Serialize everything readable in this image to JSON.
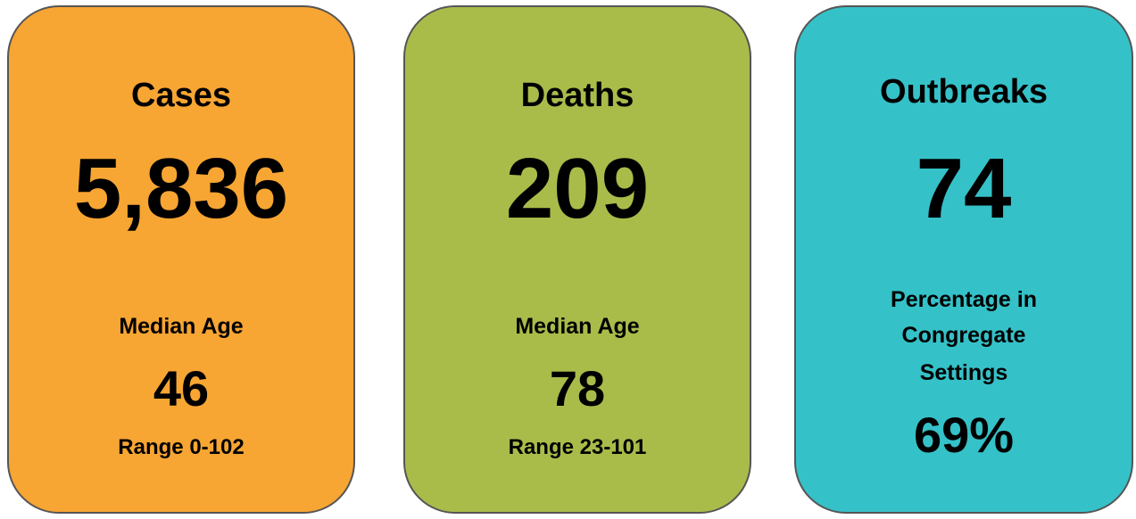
{
  "cards": [
    {
      "title": "Cases",
      "value": "5,836",
      "label_lines": [
        "Median Age"
      ],
      "sub_value": "46",
      "range": "Range 0-102"
    },
    {
      "title": "Deaths",
      "value": "209",
      "label_lines": [
        "Median Age"
      ],
      "sub_value": "78",
      "range": "Range 23-101"
    },
    {
      "title": "Outbreaks",
      "value": "74",
      "label_lines": [
        "Percentage in",
        "Congregate",
        "Settings"
      ],
      "sub_value": "69%"
    }
  ]
}
